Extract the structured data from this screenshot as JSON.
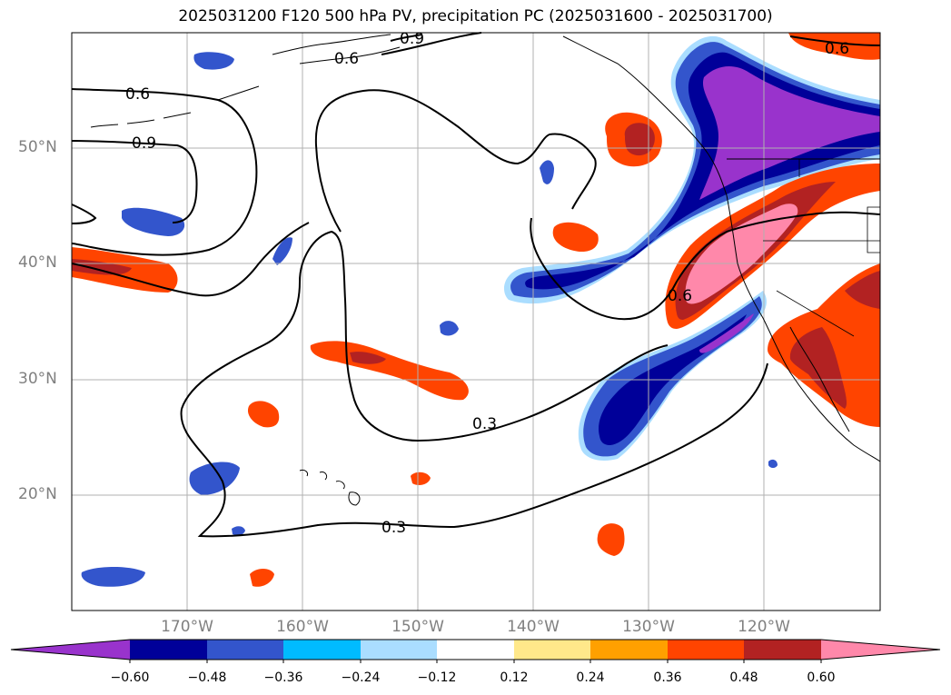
{
  "title": "2025031200 F120 500 hPa PV, precipitation PC (2025031600 - 2025031700)",
  "map": {
    "projection": "PlateCarree",
    "extent_lon": [
      -180,
      -110
    ],
    "extent_lat": [
      10,
      60
    ],
    "lat_ticks": [
      "50°N",
      "40°N",
      "30°N",
      "20°N"
    ],
    "lat_values": [
      50,
      40,
      30,
      20
    ],
    "lon_ticks": [
      "170°W",
      "160°W",
      "150°W",
      "140°W",
      "130°W",
      "120°W"
    ],
    "lon_values": [
      -170,
      -160,
      -150,
      -140,
      -130,
      -120
    ],
    "grid": true,
    "contour_labels": [
      "0.6",
      "0.9",
      "0.6",
      "0.9",
      "0.6",
      "0.6",
      "0.3",
      "0.3"
    ]
  },
  "colorbar": {
    "ticks": [
      "−0.60",
      "−0.48",
      "−0.36",
      "−0.24",
      "−0.12",
      "0.12",
      "0.24",
      "0.36",
      "0.48",
      "0.60"
    ],
    "colors": [
      "#9933cc",
      "#000099",
      "#3355cc",
      "#00bbff",
      "#aaddff",
      "#ffffff",
      "#ffe88a",
      "#ffa000",
      "#ff4400",
      "#b22222",
      "#ff88aa"
    ],
    "extend": "both"
  },
  "palette": {
    "neg_060": "#9933cc",
    "neg_048": "#000099",
    "neg_036": "#3355cc",
    "neg_024": "#00bbff",
    "neg_012": "#aaddff",
    "pos_012": "#ffe88a",
    "pos_024": "#ffa000",
    "pos_036": "#ff4400",
    "pos_048": "#b22222",
    "pos_060": "#ff88aa"
  }
}
